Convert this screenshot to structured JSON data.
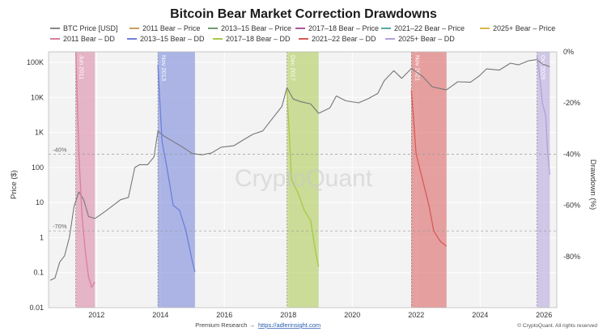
{
  "chart_data": {
    "type": "line",
    "title": "Bitcoin Bear Market Correction Drawdowns",
    "ylabel_left": "Price ($)",
    "ylabel_right": "Drawdown (%)",
    "y_left_scale": "log",
    "y_left_range": [
      0.01,
      200000
    ],
    "y_left_ticks": [
      "100K",
      "10K",
      "1K",
      "100",
      "10",
      "1",
      "0.1",
      "0.01"
    ],
    "y_right_range": [
      -100,
      0
    ],
    "y_right_ticks": [
      "0%",
      "-20%",
      "-40%",
      "-60%",
      "-80%"
    ],
    "x_range": [
      2010.5,
      2026.4
    ],
    "x_ticks": [
      "2012",
      "2014",
      "2016",
      "2018",
      "2020",
      "2022",
      "2024",
      "2026"
    ],
    "grid": true,
    "legend_position": "top",
    "legend": [
      {
        "name": "BTC Price [USD]",
        "color": "#888888"
      },
      {
        "name": "2011 Bear – Price",
        "color": "#c9a15b"
      },
      {
        "name": "2013–15 Bear – Price",
        "color": "#6f9a6f"
      },
      {
        "name": "2017–18 Bear – Price",
        "color": "#a8579a"
      },
      {
        "name": "2021–22 Bear – Price",
        "color": "#5aa8a0"
      },
      {
        "name": "2025+ Bear – Price",
        "color": "#d8b84a"
      },
      {
        "name": "2011 Bear – DD",
        "color": "#d87fa0"
      },
      {
        "name": "2013–15 Bear – DD",
        "color": "#6f7fd8"
      },
      {
        "name": "2017–18 Bear – DD",
        "color": "#a8c84a"
      },
      {
        "name": "2021–22 Bear – DD",
        "color": "#d85a5a"
      },
      {
        "name": "2025+ Bear – DD",
        "color": "#b3a0d8"
      }
    ],
    "reference_lines": [
      {
        "label": "-40%",
        "value": -40
      },
      {
        "label": "-70%",
        "value": -70
      }
    ],
    "bear_periods": [
      {
        "label": "Jun 2011",
        "start": 2011.35,
        "end": 2011.95,
        "color": "#d87fa0"
      },
      {
        "label": "Nov 2013",
        "start": 2013.92,
        "end": 2015.08,
        "color": "#6f7fd8"
      },
      {
        "label": "Dec 2017",
        "start": 2017.96,
        "end": 2018.95,
        "color": "#a8c84a"
      },
      {
        "label": "Nov 2021",
        "start": 2021.85,
        "end": 2022.95,
        "color": "#d85a5a"
      },
      {
        "label": "Oct 2025",
        "start": 2025.78,
        "end": 2026.18,
        "color": "#b3a0d8"
      }
    ],
    "series": [
      {
        "name": "BTC Price [USD]",
        "color": "#888888",
        "x": [
          2010.55,
          2010.7,
          2010.85,
          2011.0,
          2011.15,
          2011.3,
          2011.45,
          2011.6,
          2011.75,
          2011.95,
          2012.2,
          2012.5,
          2012.75,
          2013.0,
          2013.2,
          2013.35,
          2013.6,
          2013.8,
          2013.92,
          2014.1,
          2014.4,
          2014.7,
          2015.0,
          2015.3,
          2015.6,
          2015.9,
          2016.3,
          2016.6,
          2016.9,
          2017.2,
          2017.5,
          2017.8,
          2017.96,
          2018.15,
          2018.4,
          2018.7,
          2018.95,
          2019.3,
          2019.5,
          2019.8,
          2020.2,
          2020.5,
          2020.8,
          2021.0,
          2021.3,
          2021.55,
          2021.85,
          2022.2,
          2022.5,
          2022.95,
          2023.3,
          2023.7,
          2024.0,
          2024.2,
          2024.6,
          2024.95,
          2025.2,
          2025.5,
          2025.78,
          2025.95,
          2026.18
        ],
        "values": [
          0.06,
          0.07,
          0.2,
          0.3,
          1,
          8,
          20,
          12,
          4,
          3.5,
          5,
          8,
          12,
          14,
          100,
          120,
          120,
          200,
          1100,
          800,
          550,
          380,
          250,
          230,
          260,
          380,
          420,
          620,
          900,
          1100,
          2500,
          5500,
          19000,
          9000,
          7500,
          6500,
          3500,
          5000,
          11000,
          8000,
          7000,
          9200,
          13000,
          30000,
          58000,
          35000,
          67000,
          40000,
          20000,
          16500,
          28000,
          27000,
          43000,
          65000,
          60000,
          95000,
          85000,
          110000,
          120000,
          90000,
          75000
        ]
      },
      {
        "name": "2011 Bear – DD",
        "color": "#d87fa0",
        "x": [
          2011.35,
          2011.45,
          2011.55,
          2011.65,
          2011.75,
          2011.85,
          2011.95
        ],
        "values": [
          0,
          -40,
          -65,
          -78,
          -88,
          -92,
          -90
        ]
      },
      {
        "name": "2013–15 Bear – DD",
        "color": "#6f7fd8",
        "x": [
          2013.92,
          2014.05,
          2014.2,
          2014.4,
          2014.6,
          2014.8,
          2015.0,
          2015.08
        ],
        "values": [
          -5,
          -35,
          -45,
          -60,
          -62,
          -70,
          -82,
          -86
        ]
      },
      {
        "name": "2017–18 Bear – DD",
        "color": "#a8c84a",
        "x": [
          2017.96,
          2018.1,
          2018.3,
          2018.5,
          2018.7,
          2018.85,
          2018.95
        ],
        "values": [
          -15,
          -50,
          -55,
          -62,
          -66,
          -78,
          -84
        ]
      },
      {
        "name": "2021–22 Bear – DD",
        "color": "#d85a5a",
        "x": [
          2021.85,
          2022.0,
          2022.2,
          2022.4,
          2022.55,
          2022.75,
          2022.95
        ],
        "values": [
          -15,
          -40,
          -50,
          -60,
          -70,
          -74,
          -76
        ]
      },
      {
        "name": "2025+ Bear – DD",
        "color": "#b3a0d8",
        "x": [
          2025.78,
          2025.85,
          2025.95,
          2026.05,
          2026.12,
          2026.18
        ],
        "values": [
          -2,
          -8,
          -20,
          -25,
          -40,
          -48
        ]
      }
    ]
  },
  "watermark": "CryptoQuant",
  "footer": {
    "research_label": "Premium Research →",
    "research_link": "https://adlerinsight.com",
    "copyright": "© CryptoQuant. All rights reserved"
  }
}
